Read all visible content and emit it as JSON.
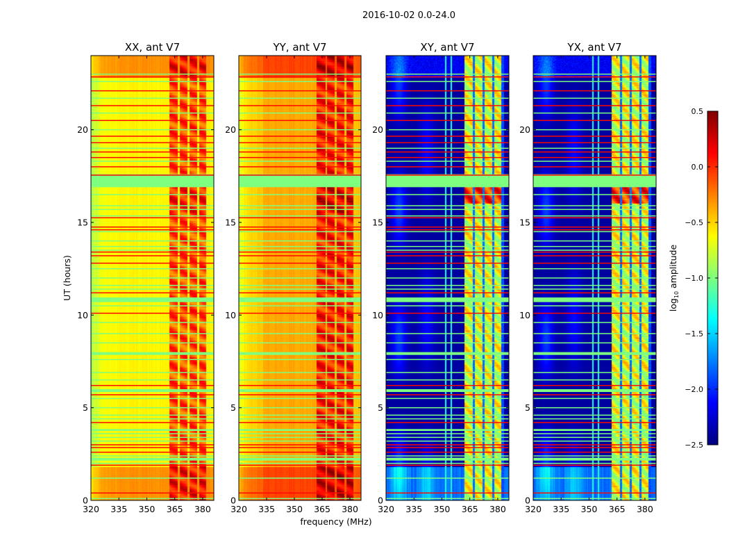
{
  "chart_data": {
    "type": "heatmap",
    "title": "2016-10-02 0.0-24.0",
    "xlabel": "frequency (MHz)",
    "ylabel": "UT (hours)",
    "xlim": [
      320,
      386
    ],
    "ylim": [
      0,
      24
    ],
    "xticks": [
      320,
      335,
      350,
      365,
      380
    ],
    "yticks": [
      0,
      5,
      10,
      15,
      20
    ],
    "colorbar": {
      "label_main": "log",
      "label_sub": "10",
      "label_rest": " amplitude",
      "range": [
        -2.5,
        0.5
      ],
      "ticks": [
        "0.5",
        "0.0",
        "−0.5",
        "−1.0",
        "−1.5",
        "−2.0",
        "−2.5"
      ],
      "tick_values": [
        0.5,
        0.0,
        -0.5,
        -1.0,
        -1.5,
        -2.0,
        -2.5
      ],
      "colormap": "jet"
    },
    "panels": [
      {
        "title": "XX, ant V7",
        "kind": "auto",
        "base_level": -0.6,
        "band_level": -0.1
      },
      {
        "title": "YY, ant V7",
        "kind": "auto",
        "base_level": -0.45,
        "band_level": 0.05
      },
      {
        "title": "XY, ant V7",
        "kind": "cross",
        "base_level": -2.4,
        "band_level": -0.7
      },
      {
        "title": "YX, ant V7",
        "kind": "cross",
        "base_level": -2.4,
        "band_level": -0.7
      }
    ],
    "signal_band_mhz": [
      362,
      382
    ],
    "band_gaps_mhz": [
      367.2,
      372.4,
      377.5
    ],
    "rfi_channels_mhz": [
      352,
      355
    ],
    "bright_time_ranges": [
      [
        22.8,
        24
      ],
      [
        0,
        1.8
      ]
    ],
    "flag_value_red": 0.1,
    "flag_value_green": -1.0,
    "flag_rows_red": [
      22.85,
      22.1,
      21.3,
      20.5,
      19.65,
      19.3,
      18.8,
      18.5,
      18.0,
      17.55,
      15.25,
      14.75,
      14.6,
      13.4,
      13.2,
      12.8,
      11.2,
      10.1,
      6.2,
      5.7,
      4.2,
      3.0,
      2.85,
      2.6,
      1.9,
      0.4
    ],
    "flag_rows_green": [
      23.0,
      22.6,
      21.7,
      20.9,
      20.0,
      19.0,
      18.3,
      16.5,
      15.9,
      15.7,
      15.35,
      14.5,
      14.0,
      13.7,
      13.5,
      12.5,
      12.0,
      11.6,
      11.4,
      10.5,
      9.6,
      9.0,
      8.5,
      7.6,
      6.9,
      6.5,
      5.5,
      5.0,
      4.6,
      4.4,
      3.6,
      3.4,
      3.2,
      2.4,
      2.0,
      1.2,
      0.1
    ],
    "flag_blocks_green": [
      [
        16.9,
        17.6
      ],
      [
        10.7,
        10.95
      ],
      [
        7.85,
        8.0
      ],
      [
        5.85,
        6.0
      ],
      [
        3.75,
        3.85
      ],
      [
        2.15,
        2.3
      ]
    ]
  }
}
